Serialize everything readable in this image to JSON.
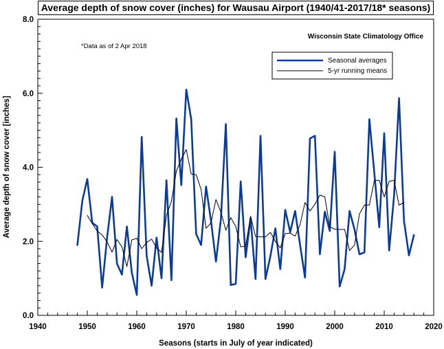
{
  "chart_data": {
    "type": "line",
    "title": "Average depth of snow cover (inches) for Wausau Airport (1940/41-2017/18* seasons)",
    "source": "Wisconsin State Climatology Office",
    "note": "*Data as of 2 Apr 2018",
    "xlabel": "Seasons (starts in July of year indicated)",
    "ylabel": "Average depth of snow cover [inches]",
    "xlim": [
      1940,
      2020
    ],
    "ylim": [
      0,
      8
    ],
    "xticks": [
      "1940",
      "1950",
      "1960",
      "1970",
      "1980",
      "1990",
      "2000",
      "2010",
      "2020"
    ],
    "yticks": [
      "0.0",
      "2.0",
      "4.0",
      "6.0",
      "8.0"
    ],
    "legend_position": "top-right",
    "series": [
      {
        "name": "Seasonal averages",
        "color": "#0a3a9a",
        "x": [
          1948,
          1949,
          1950,
          1951,
          1952,
          1953,
          1954,
          1955,
          1956,
          1957,
          1958,
          1959,
          1960,
          1961,
          1962,
          1963,
          1964,
          1965,
          1966,
          1967,
          1968,
          1969,
          1970,
          1971,
          1972,
          1973,
          1974,
          1975,
          1976,
          1977,
          1978,
          1979,
          1980,
          1981,
          1982,
          1983,
          1984,
          1985,
          1986,
          1987,
          1988,
          1989,
          1990,
          1991,
          1992,
          1993,
          1994,
          1995,
          1996,
          1997,
          1998,
          1999,
          2000,
          2001,
          2002,
          2003,
          2004,
          2005,
          2006,
          2007,
          2008,
          2009,
          2010,
          2011,
          2012,
          2013,
          2014,
          2015,
          2016
        ],
        "y": [
          1.9,
          3.1,
          3.68,
          2.5,
          2.4,
          0.75,
          2.1,
          3.2,
          1.4,
          1.1,
          2.4,
          1.15,
          0.55,
          4.82,
          1.6,
          0.8,
          2.1,
          1.0,
          3.65,
          0.95,
          5.32,
          3.52,
          6.1,
          5.3,
          2.2,
          1.9,
          3.48,
          2.55,
          1.45,
          2.6,
          5.17,
          0.82,
          0.85,
          3.62,
          1.57,
          2.62,
          0.98,
          4.85,
          0.98,
          1.6,
          2.35,
          1.25,
          2.85,
          2.25,
          2.82,
          1.9,
          1.02,
          4.78,
          4.85,
          1.65,
          2.8,
          2.28,
          4.42,
          0.78,
          1.25,
          2.82,
          2.32,
          1.65,
          1.7,
          5.3,
          3.85,
          2.38,
          4.92,
          1.75,
          3.25,
          5.87,
          2.55,
          1.62,
          2.17
        ]
      },
      {
        "name": "5-yr running means",
        "color": "#000000",
        "x": [
          1950,
          1951,
          1952,
          1953,
          1954,
          1955,
          1956,
          1957,
          1958,
          1959,
          1960,
          1961,
          1962,
          1963,
          1964,
          1965,
          1966,
          1967,
          1968,
          1969,
          1970,
          1971,
          1972,
          1973,
          1974,
          1975,
          1976,
          1977,
          1978,
          1979,
          1980,
          1981,
          1982,
          1983,
          1984,
          1985,
          1986,
          1987,
          1988,
          1989,
          1990,
          1991,
          1992,
          1993,
          1994,
          1995,
          1996,
          1997,
          1998,
          1999,
          2000,
          2001,
          2002,
          2003,
          2004,
          2005,
          2006,
          2007,
          2008,
          2009,
          2010,
          2011,
          2012,
          2013,
          2014
        ],
        "y": [
          2.7,
          2.48,
          2.28,
          2.17,
          1.99,
          1.71,
          2.05,
          1.85,
          1.32,
          2.04,
          2.08,
          1.8,
          1.97,
          2.06,
          1.82,
          1.7,
          2.7,
          3.08,
          3.9,
          4.22,
          4.48,
          3.82,
          3.8,
          3.4,
          2.35,
          2.5,
          3.13,
          2.79,
          2.3,
          2.64,
          2.4,
          1.85,
          1.87,
          2.68,
          2.13,
          2.12,
          2.12,
          2.24,
          2.0,
          1.82,
          2.21,
          2.22,
          2.14,
          2.45,
          3.05,
          2.82,
          3.0,
          3.25,
          3.2,
          2.39,
          2.33,
          2.32,
          2.32,
          1.75,
          1.9,
          2.74,
          2.98,
          2.98,
          3.64,
          3.65,
          3.2,
          3.62,
          3.65,
          2.98,
          3.05
        ]
      }
    ]
  }
}
